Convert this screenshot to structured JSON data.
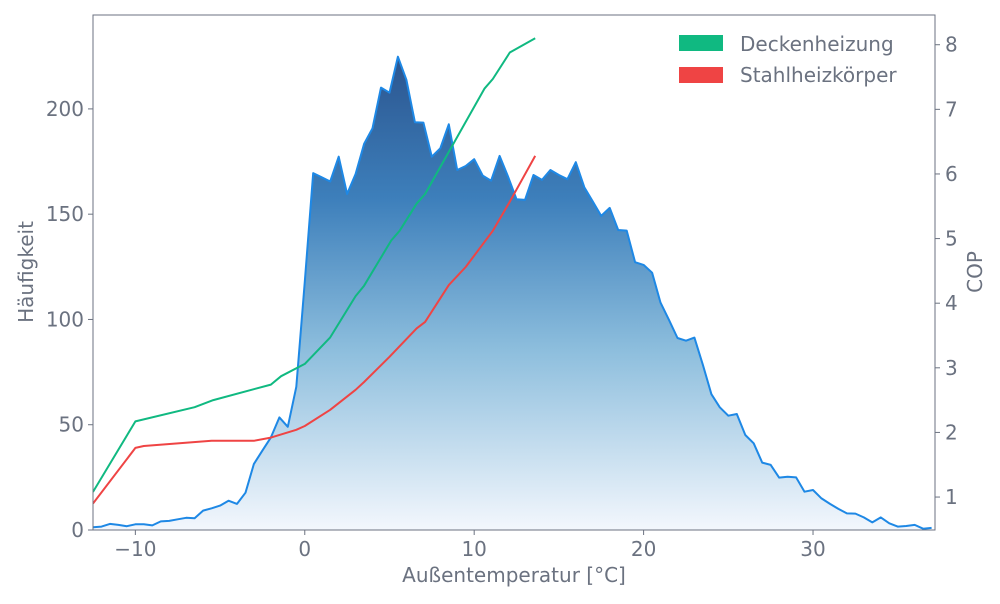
{
  "chart_data": {
    "type": "area+line",
    "xlabel": "Außentemperatur [°C]",
    "ylabel_left": "Häufigkeit",
    "ylabel_right": "COP",
    "xlim": [
      -12.5,
      37.2
    ],
    "ylim_left": [
      0,
      244.6
    ],
    "ylim_right": [
      0.49,
      8.46
    ],
    "x_ticks": [
      -10,
      0,
      10,
      20,
      30
    ],
    "x_tick_labels": [
      "−10",
      "0",
      "10",
      "20",
      "30"
    ],
    "y_left_ticks": [
      0,
      50,
      100,
      150,
      200
    ],
    "y_left_tick_labels": [
      "0",
      "50",
      "100",
      "150",
      "200"
    ],
    "y_right_ticks": [
      1,
      2,
      3,
      4,
      5,
      6,
      7,
      8
    ],
    "y_right_tick_labels": [
      "1",
      "2",
      "3",
      "4",
      "5",
      "6",
      "7",
      "8"
    ],
    "grid": false,
    "legend": {
      "placement": "top-right",
      "entries": [
        "Deckenheizung",
        "Stahlheizkörper"
      ]
    },
    "histogram": {
      "axis": "left",
      "color": "#1e88e5",
      "gradient": [
        "#2b558f",
        "#3d7fbb",
        "#8dbedd",
        "#f3f7fd"
      ],
      "x": [
        -12.5,
        -12,
        -11.5,
        -11,
        -10.5,
        -10,
        -9.5,
        -9,
        -8.5,
        -8,
        -7.5,
        -7,
        -6.5,
        -6,
        -5.5,
        -5,
        -4.5,
        -4,
        -3.5,
        -3,
        -2.5,
        -2,
        -1.5,
        -1,
        -0.5,
        0,
        0.5,
        1,
        1.5,
        2,
        2.5,
        3,
        3.5,
        4,
        4.5,
        5,
        5.5,
        6,
        6.5,
        7,
        7.5,
        8,
        8.5,
        9,
        9.5,
        10,
        10.5,
        11,
        11.5,
        12,
        12.5,
        13,
        13.5,
        14,
        14.5,
        15,
        15.5,
        16,
        16.5,
        17,
        17.5,
        18,
        18.5,
        19,
        19.5,
        20,
        20.5,
        21,
        21.5,
        22,
        22.5,
        23,
        23.5,
        24,
        24.5,
        25,
        25.5,
        26,
        26.5,
        27,
        27.5,
        28,
        28.5,
        29,
        29.5,
        30,
        30.5,
        31,
        31.5,
        32,
        32.5,
        33,
        33.5,
        34,
        34.5,
        35,
        35.5,
        36,
        36.5,
        37
      ],
      "values": [
        1.3,
        1.6,
        2.9,
        2.4,
        1.8,
        2.7,
        2.7,
        2.2,
        4.1,
        4.3,
        5.1,
        5.8,
        5.6,
        9.2,
        10.3,
        11.6,
        13.9,
        12.4,
        17.7,
        31.4,
        37.7,
        44,
        53.5,
        49,
        68,
        118,
        169.5,
        167.5,
        165.5,
        177.3,
        159.6,
        169.1,
        183.4,
        190.8,
        210.1,
        207.7,
        224.8,
        213.8,
        193.7,
        193.5,
        177.3,
        181.3,
        192.7,
        171,
        172.9,
        176.1,
        168.3,
        165.9,
        177.7,
        167.8,
        157.1,
        156.8,
        168.6,
        166.3,
        171,
        168.6,
        166.6,
        174.7,
        162.8,
        156,
        149.2,
        153,
        142.5,
        142.2,
        127.2,
        125.9,
        122.2,
        108,
        99.8,
        91.2,
        89.9,
        91.4,
        78.4,
        64.5,
        58.3,
        54.3,
        55.1,
        45.1,
        41.2,
        32,
        30.9,
        24.9,
        25.3,
        25,
        18.2,
        19,
        15,
        12.4,
        10,
        7.9,
        7.8,
        6,
        3.6,
        6,
        3.2,
        1.6,
        1.9,
        2.4,
        0.6,
        1
      ]
    },
    "series": [
      {
        "name": "Deckenheizung",
        "axis": "right",
        "color": "#10b981",
        "x": [
          -12.5,
          -10,
          -6.5,
          -5.4,
          -2,
          -1.4,
          0,
          1.5,
          3,
          3.5,
          5.1,
          5.6,
          6.6,
          7.1,
          10.6,
          11.1,
          12.1,
          13.6
        ],
        "y": [
          1.08,
          2.17,
          2.39,
          2.5,
          2.74,
          2.87,
          3.06,
          3.47,
          4.11,
          4.27,
          4.97,
          5.12,
          5.54,
          5.69,
          7.32,
          7.47,
          7.88,
          8.1
        ]
      },
      {
        "name": "Stahlheizkörper",
        "axis": "right",
        "color": "#ef4444",
        "x": [
          -12.5,
          -10,
          -9.5,
          -5.5,
          -3,
          -2,
          -0.5,
          0,
          1.5,
          3,
          3.5,
          5,
          6.6,
          7.1,
          8.5,
          9.5,
          11.1,
          12.1,
          13.6
        ],
        "y": [
          0.9,
          1.76,
          1.79,
          1.87,
          1.87,
          1.92,
          2.04,
          2.1,
          2.35,
          2.66,
          2.78,
          3.17,
          3.61,
          3.71,
          4.28,
          4.56,
          5.12,
          5.57,
          6.28
        ]
      }
    ]
  }
}
